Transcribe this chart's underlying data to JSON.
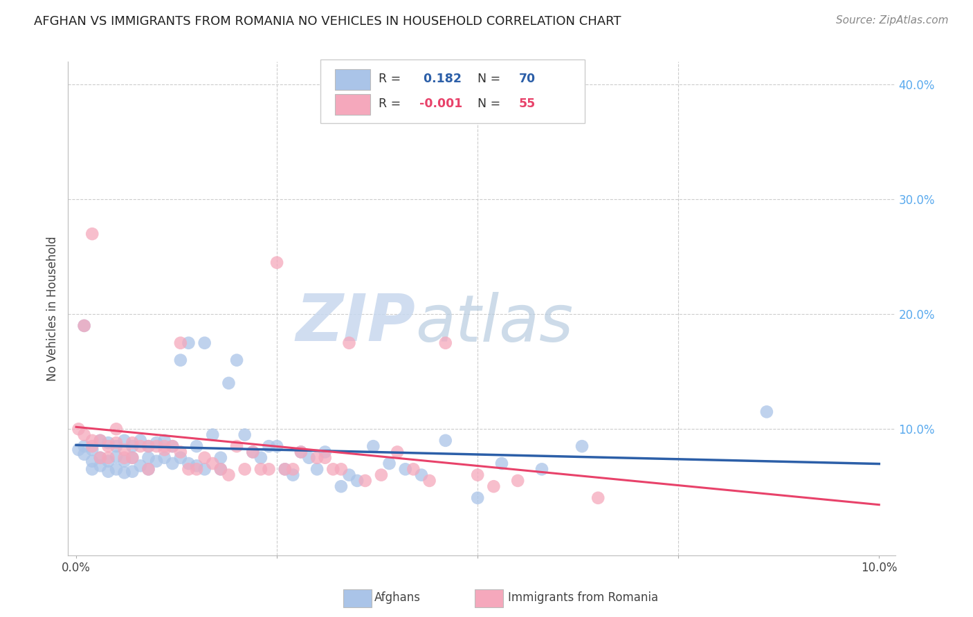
{
  "title": "AFGHAN VS IMMIGRANTS FROM ROMANIA NO VEHICLES IN HOUSEHOLD CORRELATION CHART",
  "source": "Source: ZipAtlas.com",
  "ylabel": "No Vehicles in Household",
  "xlim": [
    -0.001,
    0.102
  ],
  "ylim": [
    -0.01,
    0.42
  ],
  "legend_r_blue": "0.182",
  "legend_n_blue": "70",
  "legend_r_pink": "-0.001",
  "legend_n_pink": "55",
  "blue_color": "#aac4e8",
  "pink_color": "#f5a8bc",
  "blue_line_color": "#2c5fa8",
  "pink_line_color": "#e8426a",
  "watermark_zip": "ZIP",
  "watermark_atlas": "atlas",
  "watermark_color_zip": "#c8d8ee",
  "watermark_color_atlas": "#b8d0ee",
  "background_color": "#ffffff",
  "grid_color": "#cccccc",
  "right_axis_color": "#5aaaee",
  "afghans_x": [
    0.0003,
    0.001,
    0.001,
    0.002,
    0.002,
    0.002,
    0.003,
    0.003,
    0.003,
    0.004,
    0.004,
    0.004,
    0.005,
    0.005,
    0.005,
    0.006,
    0.006,
    0.006,
    0.007,
    0.007,
    0.007,
    0.008,
    0.008,
    0.009,
    0.009,
    0.009,
    0.01,
    0.01,
    0.011,
    0.011,
    0.012,
    0.012,
    0.013,
    0.013,
    0.014,
    0.014,
    0.015,
    0.015,
    0.016,
    0.016,
    0.017,
    0.018,
    0.018,
    0.019,
    0.02,
    0.021,
    0.022,
    0.023,
    0.024,
    0.025,
    0.026,
    0.027,
    0.028,
    0.029,
    0.03,
    0.031,
    0.033,
    0.034,
    0.035,
    0.037,
    0.039,
    0.041,
    0.043,
    0.046,
    0.05,
    0.053,
    0.058,
    0.063,
    0.086,
    0.001
  ],
  "afghans_y": [
    0.082,
    0.085,
    0.078,
    0.082,
    0.072,
    0.065,
    0.09,
    0.075,
    0.068,
    0.088,
    0.072,
    0.063,
    0.085,
    0.076,
    0.065,
    0.09,
    0.072,
    0.062,
    0.085,
    0.075,
    0.063,
    0.09,
    0.068,
    0.085,
    0.075,
    0.065,
    0.088,
    0.072,
    0.09,
    0.075,
    0.085,
    0.07,
    0.16,
    0.075,
    0.175,
    0.07,
    0.085,
    0.068,
    0.175,
    0.065,
    0.095,
    0.075,
    0.065,
    0.14,
    0.16,
    0.095,
    0.08,
    0.075,
    0.085,
    0.085,
    0.065,
    0.06,
    0.08,
    0.075,
    0.065,
    0.08,
    0.05,
    0.06,
    0.055,
    0.085,
    0.07,
    0.065,
    0.06,
    0.09,
    0.04,
    0.07,
    0.065,
    0.085,
    0.115,
    0.19
  ],
  "romania_x": [
    0.0003,
    0.001,
    0.002,
    0.002,
    0.003,
    0.003,
    0.004,
    0.004,
    0.005,
    0.005,
    0.006,
    0.006,
    0.007,
    0.007,
    0.008,
    0.009,
    0.009,
    0.01,
    0.011,
    0.011,
    0.012,
    0.013,
    0.013,
    0.014,
    0.015,
    0.016,
    0.017,
    0.018,
    0.019,
    0.02,
    0.021,
    0.022,
    0.023,
    0.024,
    0.025,
    0.026,
    0.027,
    0.028,
    0.03,
    0.031,
    0.032,
    0.033,
    0.034,
    0.036,
    0.038,
    0.04,
    0.042,
    0.044,
    0.046,
    0.05,
    0.052,
    0.055,
    0.002,
    0.065,
    0.001
  ],
  "romania_y": [
    0.1,
    0.095,
    0.085,
    0.09,
    0.09,
    0.075,
    0.085,
    0.075,
    0.1,
    0.088,
    0.082,
    0.075,
    0.088,
    0.075,
    0.085,
    0.065,
    0.085,
    0.085,
    0.085,
    0.082,
    0.085,
    0.08,
    0.175,
    0.065,
    0.065,
    0.075,
    0.07,
    0.065,
    0.06,
    0.085,
    0.065,
    0.08,
    0.065,
    0.065,
    0.245,
    0.065,
    0.065,
    0.08,
    0.075,
    0.075,
    0.065,
    0.065,
    0.175,
    0.055,
    0.06,
    0.08,
    0.065,
    0.055,
    0.175,
    0.06,
    0.05,
    0.055,
    0.27,
    0.04,
    0.19
  ]
}
